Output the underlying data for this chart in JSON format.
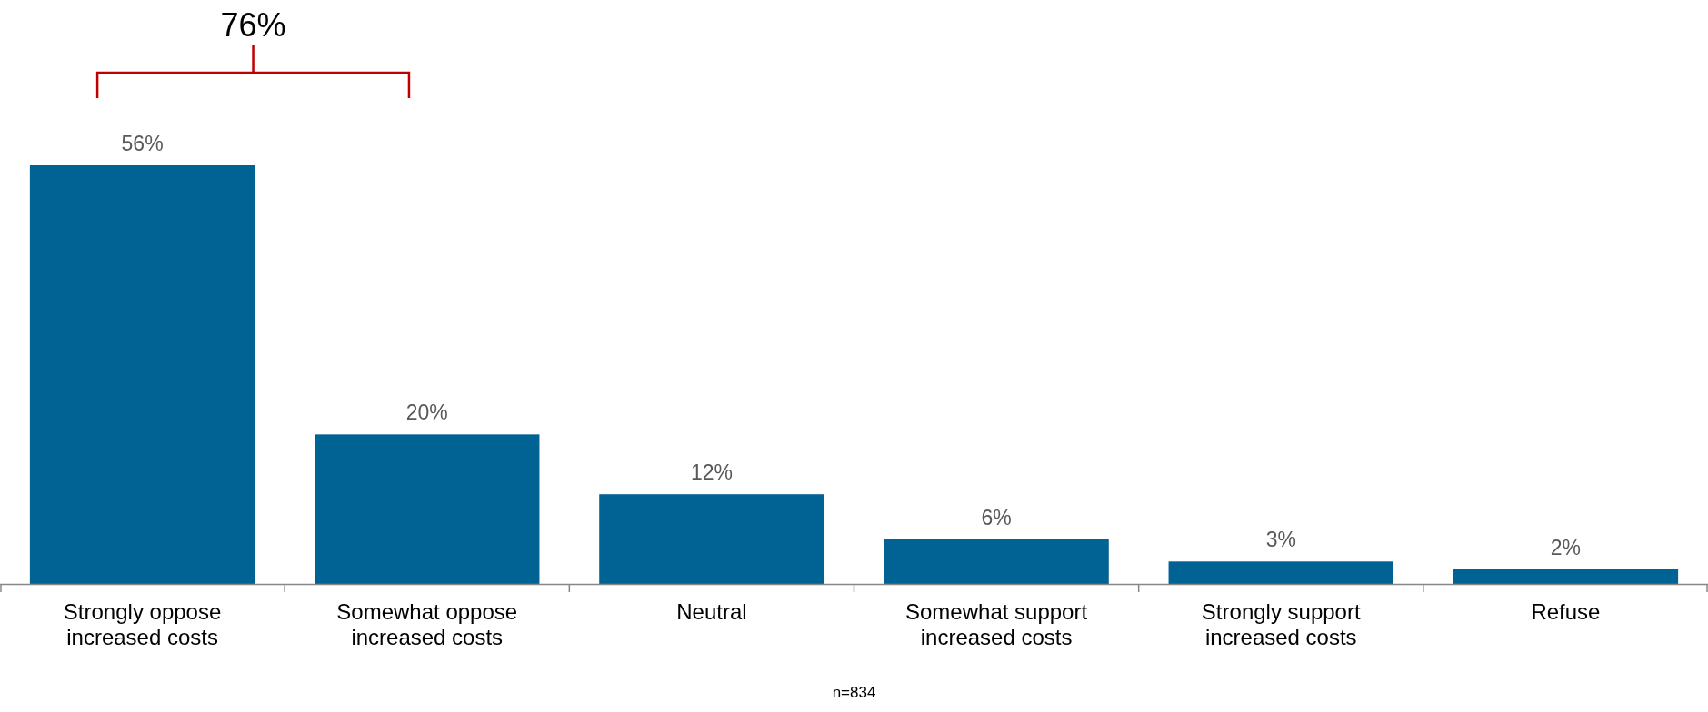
{
  "chart_data": {
    "type": "bar",
    "categories": [
      "Strongly oppose increased costs",
      "Somewhat oppose increased costs",
      "Neutral",
      "Somewhat support increased costs",
      "Strongly support increased costs",
      "Refuse"
    ],
    "values": [
      56,
      20,
      12,
      6,
      3,
      2
    ],
    "value_labels": [
      "56%",
      "20%",
      "12%",
      "6%",
      "3%",
      "2%"
    ],
    "color": "#006394",
    "annotations": [
      "76%",
      "n=834"
    ]
  }
}
